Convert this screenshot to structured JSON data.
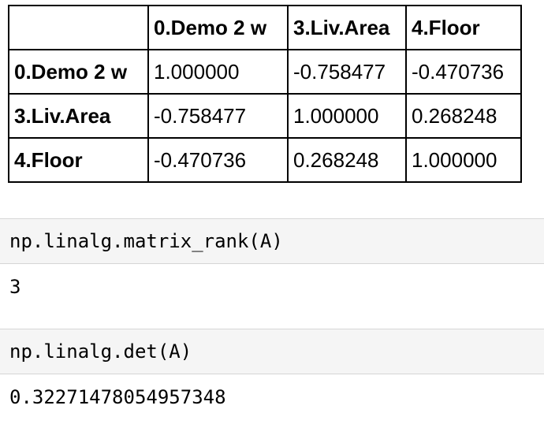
{
  "table": {
    "columns": [
      "",
      "0.Demo 2 w",
      "3.Liv.Area",
      "4.Floor"
    ],
    "rows": [
      {
        "index": "0.Demo 2 w",
        "values": [
          "1.000000",
          "-0.758477",
          "-0.470736"
        ]
      },
      {
        "index": "3.Liv.Area",
        "values": [
          "-0.758477",
          "1.000000",
          "0.268248"
        ]
      },
      {
        "index": "4.Floor",
        "values": [
          "-0.470736",
          "0.268248",
          "1.000000"
        ]
      }
    ]
  },
  "cells": [
    {
      "code": "np.linalg.matrix_rank(A)",
      "output": "3"
    },
    {
      "code": "np.linalg.det(A)",
      "output": "0.32271478054957348"
    }
  ]
}
